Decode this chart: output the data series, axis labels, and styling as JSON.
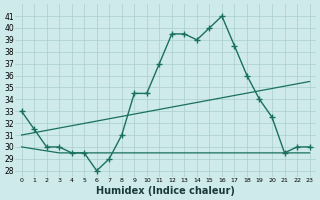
{
  "xlabel": "Humidex (Indice chaleur)",
  "background_color": "#ceeaea",
  "grid_color": "#aacece",
  "line_color": "#1a7060",
  "xlim": [
    -0.5,
    23.5
  ],
  "ylim": [
    27.5,
    42
  ],
  "yticks": [
    28,
    29,
    30,
    31,
    32,
    33,
    34,
    35,
    36,
    37,
    38,
    39,
    40,
    41
  ],
  "xticks": [
    0,
    1,
    2,
    3,
    4,
    5,
    6,
    7,
    8,
    9,
    10,
    11,
    12,
    13,
    14,
    15,
    16,
    17,
    18,
    19,
    20,
    21,
    22,
    23
  ],
  "series1_x": [
    0,
    1,
    2,
    3,
    4,
    5,
    6,
    7,
    8,
    9,
    10,
    11,
    12,
    13,
    14,
    15,
    16,
    17,
    18,
    19,
    20,
    21,
    22,
    23
  ],
  "series1_y": [
    33,
    31.5,
    30,
    30,
    29.5,
    29.5,
    28,
    29,
    31,
    34.5,
    34.5,
    37,
    39.5,
    39.5,
    39,
    40,
    41,
    38.5,
    36,
    34,
    32.5,
    29.5,
    30,
    30
  ],
  "series2_x": [
    0,
    23
  ],
  "series2_y": [
    31.0,
    35.5
  ],
  "series3_x": [
    0,
    3,
    10,
    20,
    23
  ],
  "series3_y": [
    30,
    29.5,
    29.5,
    29.5,
    29.5
  ]
}
